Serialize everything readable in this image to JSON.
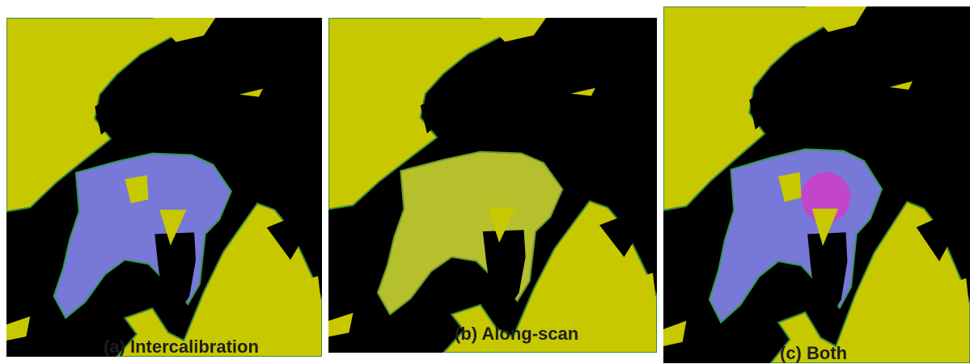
{
  "panels": [
    {
      "label": "(a) Intercalibration"
    },
    {
      "label": "(b) Along-scan"
    },
    {
      "label": "(c) Both"
    }
  ]
}
